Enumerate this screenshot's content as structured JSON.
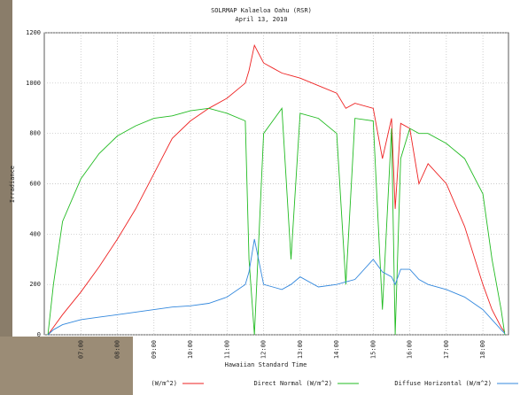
{
  "chart_data": {
    "type": "line",
    "title": "SOLRMAP Kalaeloa Oahu (RSR)",
    "subtitle": "April 13, 2010",
    "x_label": "Hawaiian Standard Time",
    "y_label": "Irradiance",
    "x": [
      6.1,
      6.25,
      6.5,
      7,
      7.5,
      8,
      8.5,
      9,
      9.5,
      10,
      10.5,
      11,
      11.5,
      11.6,
      11.75,
      12,
      12.25,
      12.5,
      12.75,
      13,
      13.5,
      14,
      14.25,
      14.5,
      15,
      15.25,
      15.5,
      15.6,
      15.75,
      16,
      16.25,
      16.5,
      17,
      17.5,
      18,
      18.25,
      18.5,
      18.6
    ],
    "series": [
      {
        "name": "(W/m^2)",
        "color": "#ee2222",
        "values": [
          0,
          30,
          80,
          170,
          270,
          380,
          500,
          640,
          780,
          850,
          900,
          940,
          1000,
          1050,
          1150,
          1080,
          1060,
          1040,
          1030,
          1020,
          990,
          960,
          900,
          920,
          900,
          700,
          860,
          500,
          840,
          820,
          600,
          680,
          600,
          430,
          200,
          100,
          30,
          10
        ]
      },
      {
        "name": "Direct Normal (W/m^2)",
        "color": "#22bb22",
        "values": [
          0,
          200,
          450,
          620,
          720,
          790,
          830,
          860,
          870,
          890,
          900,
          880,
          850,
          300,
          0,
          800,
          850,
          900,
          300,
          880,
          860,
          800,
          200,
          860,
          850,
          100,
          820,
          0,
          700,
          820,
          800,
          800,
          760,
          700,
          560,
          300,
          100,
          0
        ]
      },
      {
        "name": "Diffuse Horizontal (W/m^2)",
        "color": "#3388dd",
        "values": [
          0,
          20,
          40,
          60,
          70,
          80,
          90,
          100,
          110,
          115,
          125,
          150,
          200,
          250,
          380,
          200,
          190,
          180,
          200,
          230,
          190,
          200,
          210,
          220,
          300,
          250,
          230,
          200,
          260,
          260,
          220,
          200,
          180,
          150,
          100,
          60,
          20,
          5
        ]
      }
    ],
    "xlim": [
      6.0,
      18.7
    ],
    "ylim": [
      0,
      1200
    ],
    "xticks": [
      {
        "value": 7,
        "label": "07:00"
      },
      {
        "value": 8,
        "label": "08:00"
      },
      {
        "value": 9,
        "label": "09:00"
      },
      {
        "value": 10,
        "label": "10:00"
      },
      {
        "value": 11,
        "label": "11:00"
      },
      {
        "value": 12,
        "label": "12:00"
      },
      {
        "value": 13,
        "label": "13:00"
      },
      {
        "value": 14,
        "label": "14:00"
      },
      {
        "value": 15,
        "label": "15:00"
      },
      {
        "value": 16,
        "label": "16:00"
      },
      {
        "value": 17,
        "label": "17:00"
      },
      {
        "value": 18,
        "label": "18:00"
      }
    ],
    "yticks": [
      0,
      200,
      400,
      600,
      800,
      1000,
      1200
    ],
    "grid": true
  }
}
